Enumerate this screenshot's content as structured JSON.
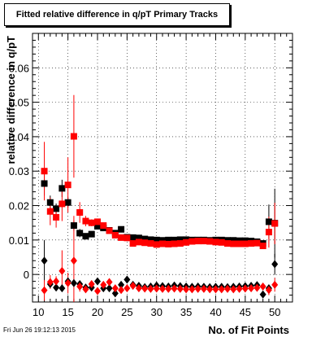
{
  "title": "Fitted relative difference in q/pT Primary Tracks",
  "footer": "Fri Jun 26 19:12:13 2015",
  "chart_data": {
    "type": "scatter",
    "xlabel": "No. of Fit Points",
    "ylabel": "relative difference in q/pT",
    "xlim": [
      9,
      53
    ],
    "ylim": [
      -0.008,
      0.07
    ],
    "xticks": [
      10,
      15,
      20,
      25,
      30,
      35,
      40,
      45,
      50
    ],
    "yticks": [
      0,
      0.01,
      0.02,
      0.03,
      0.04,
      0.05,
      0.06
    ],
    "ytick_labels": [
      "0",
      "0.01",
      "0.02",
      "0.03",
      "0.04",
      "0.05",
      "0.06"
    ],
    "grid": true,
    "series": [
      {
        "marker": "square",
        "color": "#000000",
        "points": [
          {
            "x": 11,
            "y": 0.0264,
            "err": 0.0035
          },
          {
            "x": 12,
            "y": 0.0209,
            "err": 0.002
          },
          {
            "x": 13,
            "y": 0.0191,
            "err": 0.0015
          },
          {
            "x": 14,
            "y": 0.025,
            "err": 0.0025
          },
          {
            "x": 15,
            "y": 0.0209,
            "err": 0.0015
          },
          {
            "x": 16,
            "y": 0.0142,
            "err": 0.0015
          },
          {
            "x": 17,
            "y": 0.012,
            "err": 0.0012
          },
          {
            "x": 18,
            "y": 0.0111,
            "err": 0.0008
          },
          {
            "x": 19,
            "y": 0.0117,
            "err": 0.0007
          },
          {
            "x": 20,
            "y": 0.014,
            "err": 0.0006
          },
          {
            "x": 21,
            "y": 0.0135,
            "err": 0.0005
          },
          {
            "x": 22,
            "y": 0.0128,
            "err": 0.0005
          },
          {
            "x": 23,
            "y": 0.012,
            "err": 0.0004
          },
          {
            "x": 24,
            "y": 0.0131,
            "err": 0.0004
          },
          {
            "x": 25,
            "y": 0.0108,
            "err": 0.0003
          },
          {
            "x": 26,
            "y": 0.0107,
            "err": 0.0003
          },
          {
            "x": 27,
            "y": 0.0106,
            "err": 0.0003
          },
          {
            "x": 28,
            "y": 0.0103,
            "err": 0.0003
          },
          {
            "x": 29,
            "y": 0.0101,
            "err": 0.0002
          },
          {
            "x": 30,
            "y": 0.01,
            "err": 0.0002
          },
          {
            "x": 31,
            "y": 0.0099,
            "err": 0.0002
          },
          {
            "x": 32,
            "y": 0.01,
            "err": 0.0002
          },
          {
            "x": 33,
            "y": 0.01,
            "err": 0.0002
          },
          {
            "x": 34,
            "y": 0.0101,
            "err": 0.0002
          },
          {
            "x": 35,
            "y": 0.0101,
            "err": 0.0002
          },
          {
            "x": 36,
            "y": 0.01,
            "err": 0.0002
          },
          {
            "x": 37,
            "y": 0.01,
            "err": 0.0002
          },
          {
            "x": 38,
            "y": 0.01,
            "err": 0.0002
          },
          {
            "x": 39,
            "y": 0.0099,
            "err": 0.0002
          },
          {
            "x": 40,
            "y": 0.01,
            "err": 0.0002
          },
          {
            "x": 41,
            "y": 0.01,
            "err": 0.0002
          },
          {
            "x": 42,
            "y": 0.0099,
            "err": 0.0002
          },
          {
            "x": 43,
            "y": 0.0099,
            "err": 0.0002
          },
          {
            "x": 44,
            "y": 0.0098,
            "err": 0.0002
          },
          {
            "x": 45,
            "y": 0.0098,
            "err": 0.0002
          },
          {
            "x": 46,
            "y": 0.0097,
            "err": 0.0002
          },
          {
            "x": 47,
            "y": 0.0095,
            "err": 0.0003
          },
          {
            "x": 48,
            "y": 0.009,
            "err": 0.0003
          },
          {
            "x": 49,
            "y": 0.0153,
            "err": 0.005
          },
          {
            "x": 50,
            "y": 0.0149,
            "err": 0.01
          }
        ]
      },
      {
        "marker": "square",
        "color": "#ff0000",
        "points": [
          {
            "x": 11,
            "y": 0.03,
            "err": 0.0085
          },
          {
            "x": 12,
            "y": 0.0183,
            "err": 0.004
          },
          {
            "x": 13,
            "y": 0.0166,
            "err": 0.003
          },
          {
            "x": 14,
            "y": 0.0205,
            "err": 0.005
          },
          {
            "x": 15,
            "y": 0.026,
            "err": 0.008
          },
          {
            "x": 16,
            "y": 0.0401,
            "err": 0.012
          },
          {
            "x": 17,
            "y": 0.018,
            "err": 0.003
          },
          {
            "x": 18,
            "y": 0.0155,
            "err": 0.0015
          },
          {
            "x": 19,
            "y": 0.015,
            "err": 0.001
          },
          {
            "x": 20,
            "y": 0.0153,
            "err": 0.0008
          },
          {
            "x": 21,
            "y": 0.0142,
            "err": 0.0007
          },
          {
            "x": 22,
            "y": 0.0127,
            "err": 0.0006
          },
          {
            "x": 23,
            "y": 0.0114,
            "err": 0.0005
          },
          {
            "x": 24,
            "y": 0.0107,
            "err": 0.0004
          },
          {
            "x": 25,
            "y": 0.0106,
            "err": 0.0004
          },
          {
            "x": 26,
            "y": 0.009,
            "err": 0.0003
          },
          {
            "x": 27,
            "y": 0.0094,
            "err": 0.0003
          },
          {
            "x": 28,
            "y": 0.0092,
            "err": 0.0003
          },
          {
            "x": 29,
            "y": 0.009,
            "err": 0.0003
          },
          {
            "x": 30,
            "y": 0.0087,
            "err": 0.0002
          },
          {
            "x": 31,
            "y": 0.0089,
            "err": 0.0002
          },
          {
            "x": 32,
            "y": 0.0088,
            "err": 0.0002
          },
          {
            "x": 33,
            "y": 0.0089,
            "err": 0.0002
          },
          {
            "x": 34,
            "y": 0.009,
            "err": 0.0002
          },
          {
            "x": 35,
            "y": 0.0093,
            "err": 0.0002
          },
          {
            "x": 36,
            "y": 0.0096,
            "err": 0.0002
          },
          {
            "x": 37,
            "y": 0.0097,
            "err": 0.0002
          },
          {
            "x": 38,
            "y": 0.0097,
            "err": 0.0002
          },
          {
            "x": 39,
            "y": 0.0096,
            "err": 0.0002
          },
          {
            "x": 40,
            "y": 0.0094,
            "err": 0.0002
          },
          {
            "x": 41,
            "y": 0.0093,
            "err": 0.0002
          },
          {
            "x": 42,
            "y": 0.009,
            "err": 0.0002
          },
          {
            "x": 43,
            "y": 0.0089,
            "err": 0.0002
          },
          {
            "x": 44,
            "y": 0.0089,
            "err": 0.0002
          },
          {
            "x": 45,
            "y": 0.0089,
            "err": 0.0002
          },
          {
            "x": 46,
            "y": 0.009,
            "err": 0.0003
          },
          {
            "x": 47,
            "y": 0.0091,
            "err": 0.0003
          },
          {
            "x": 48,
            "y": 0.0083,
            "err": 0.0003
          },
          {
            "x": 49,
            "y": 0.0123,
            "err": 0.0045
          },
          {
            "x": 50,
            "y": 0.0148,
            "err": 0.006
          }
        ]
      },
      {
        "marker": "diamond",
        "color": "#000000",
        "points": [
          {
            "x": 11,
            "y": 0.004,
            "err": 0.006
          },
          {
            "x": 12,
            "y": -0.0028,
            "err": 0.001
          },
          {
            "x": 13,
            "y": -0.0038,
            "err": 0.001
          },
          {
            "x": 14,
            "y": -0.004,
            "err": 0.001
          },
          {
            "x": 15,
            "y": -0.002,
            "err": 0.001
          },
          {
            "x": 16,
            "y": -0.0025,
            "err": 0.001
          },
          {
            "x": 17,
            "y": -0.0028,
            "err": 0.0008
          },
          {
            "x": 18,
            "y": -0.0038,
            "err": 0.0006
          },
          {
            "x": 19,
            "y": -0.0038,
            "err": 0.0005
          },
          {
            "x": 20,
            "y": -0.002,
            "err": 0.0004
          },
          {
            "x": 21,
            "y": -0.004,
            "err": 0.0004
          },
          {
            "x": 22,
            "y": -0.004,
            "err": 0.0004
          },
          {
            "x": 23,
            "y": -0.0055,
            "err": 0.0004
          },
          {
            "x": 24,
            "y": -0.003,
            "err": 0.0003
          },
          {
            "x": 25,
            "y": -0.0015,
            "err": 0.0003
          },
          {
            "x": 26,
            "y": -0.003,
            "err": 0.0002
          },
          {
            "x": 27,
            "y": -0.0033,
            "err": 0.0002
          },
          {
            "x": 28,
            "y": -0.0037,
            "err": 0.0002
          },
          {
            "x": 29,
            "y": -0.0035,
            "err": 0.0002
          },
          {
            "x": 30,
            "y": -0.0032,
            "err": 0.0002
          },
          {
            "x": 31,
            "y": -0.0034,
            "err": 0.0002
          },
          {
            "x": 32,
            "y": -0.0035,
            "err": 0.0002
          },
          {
            "x": 33,
            "y": -0.0032,
            "err": 0.0002
          },
          {
            "x": 34,
            "y": -0.0034,
            "err": 0.0002
          },
          {
            "x": 35,
            "y": -0.0035,
            "err": 0.0002
          },
          {
            "x": 36,
            "y": -0.0036,
            "err": 0.0002
          },
          {
            "x": 37,
            "y": -0.0035,
            "err": 0.0002
          },
          {
            "x": 38,
            "y": -0.0036,
            "err": 0.0002
          },
          {
            "x": 39,
            "y": -0.0037,
            "err": 0.0002
          },
          {
            "x": 40,
            "y": -0.0036,
            "err": 0.0002
          },
          {
            "x": 41,
            "y": -0.0036,
            "err": 0.0002
          },
          {
            "x": 42,
            "y": -0.0037,
            "err": 0.0002
          },
          {
            "x": 43,
            "y": -0.0036,
            "err": 0.0002
          },
          {
            "x": 44,
            "y": -0.0035,
            "err": 0.0002
          },
          {
            "x": 45,
            "y": -0.0034,
            "err": 0.0002
          },
          {
            "x": 46,
            "y": -0.0033,
            "err": 0.0002
          },
          {
            "x": 47,
            "y": -0.0031,
            "err": 0.0002
          },
          {
            "x": 48,
            "y": -0.0058,
            "err": 0.0003
          },
          {
            "x": 49,
            "y": -0.004,
            "err": 0.001
          },
          {
            "x": 50,
            "y": 0.003,
            "err": 0.003
          }
        ]
      },
      {
        "marker": "diamond",
        "color": "#ff0000",
        "points": [
          {
            "x": 11,
            "y": -0.0046,
            "err": 0.003
          },
          {
            "x": 12,
            "y": -0.0022,
            "err": 0.002
          },
          {
            "x": 13,
            "y": -0.002,
            "err": 0.0015
          },
          {
            "x": 14,
            "y": 0.001,
            "err": 0.006
          },
          {
            "x": 15,
            "y": -0.0025,
            "err": 0.003
          },
          {
            "x": 16,
            "y": 0.004,
            "err": 0.013
          },
          {
            "x": 17,
            "y": -0.0035,
            "err": 0.0015
          },
          {
            "x": 18,
            "y": -0.0043,
            "err": 0.001
          },
          {
            "x": 19,
            "y": -0.0028,
            "err": 0.0008
          },
          {
            "x": 20,
            "y": -0.0048,
            "err": 0.0006
          },
          {
            "x": 21,
            "y": -0.003,
            "err": 0.0005
          },
          {
            "x": 22,
            "y": -0.0022,
            "err": 0.0005
          },
          {
            "x": 23,
            "y": -0.004,
            "err": 0.0004
          },
          {
            "x": 24,
            "y": -0.0045,
            "err": 0.0004
          },
          {
            "x": 25,
            "y": -0.004,
            "err": 0.0003
          },
          {
            "x": 26,
            "y": -0.0033,
            "err": 0.0003
          },
          {
            "x": 27,
            "y": -0.004,
            "err": 0.0003
          },
          {
            "x": 28,
            "y": -0.0041,
            "err": 0.0002
          },
          {
            "x": 29,
            "y": -0.0042,
            "err": 0.0002
          },
          {
            "x": 30,
            "y": -0.0041,
            "err": 0.0002
          },
          {
            "x": 31,
            "y": -0.0042,
            "err": 0.0002
          },
          {
            "x": 32,
            "y": -0.0042,
            "err": 0.0002
          },
          {
            "x": 33,
            "y": -0.0041,
            "err": 0.0002
          },
          {
            "x": 34,
            "y": -0.0042,
            "err": 0.0002
          },
          {
            "x": 35,
            "y": -0.0043,
            "err": 0.0002
          },
          {
            "x": 36,
            "y": -0.0043,
            "err": 0.0002
          },
          {
            "x": 37,
            "y": -0.0042,
            "err": 0.0002
          },
          {
            "x": 38,
            "y": -0.0042,
            "err": 0.0002
          },
          {
            "x": 39,
            "y": -0.0043,
            "err": 0.0002
          },
          {
            "x": 40,
            "y": -0.0043,
            "err": 0.0002
          },
          {
            "x": 41,
            "y": -0.0043,
            "err": 0.0002
          },
          {
            "x": 42,
            "y": -0.0042,
            "err": 0.0002
          },
          {
            "x": 43,
            "y": -0.0043,
            "err": 0.0002
          },
          {
            "x": 44,
            "y": -0.0042,
            "err": 0.0002
          },
          {
            "x": 45,
            "y": -0.0041,
            "err": 0.0002
          },
          {
            "x": 46,
            "y": -0.004,
            "err": 0.0002
          },
          {
            "x": 47,
            "y": -0.0039,
            "err": 0.0002
          },
          {
            "x": 48,
            "y": -0.0035,
            "err": 0.0003
          },
          {
            "x": 49,
            "y": -0.0045,
            "err": 0.0015
          },
          {
            "x": 50,
            "y": -0.003,
            "err": 0.002
          }
        ]
      }
    ]
  }
}
